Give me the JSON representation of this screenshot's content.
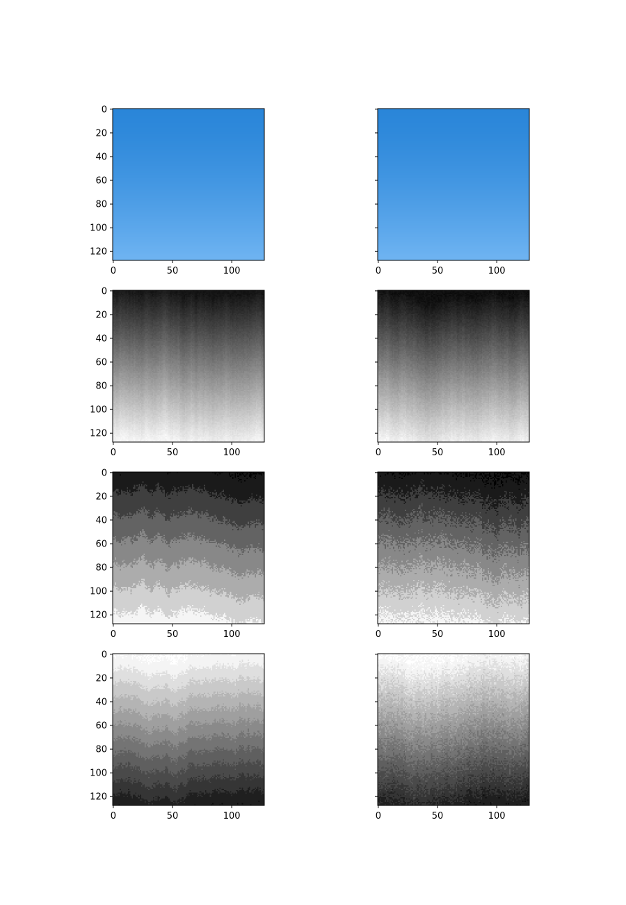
{
  "chart_data": {
    "type": "image-grid",
    "title": "",
    "rows": 4,
    "cols": 2,
    "shared_y_axis_per_row": true,
    "image_size": [
      128,
      128
    ],
    "x_ticks": [
      0,
      50,
      100
    ],
    "y_ticks": [
      0,
      20,
      40,
      60,
      80,
      100,
      120
    ],
    "x_tick_labels": [
      "0",
      "50",
      "100"
    ],
    "y_tick_labels": [
      "0",
      "20",
      "40",
      "60",
      "80",
      "100",
      "120"
    ],
    "xlim": [
      -0.5,
      127.5
    ],
    "ylim": [
      127.5,
      -0.5
    ],
    "grid": false,
    "panels": [
      {
        "row": 0,
        "col": 0,
        "kind": "rgb-gradient",
        "top_color": "#2a86d9",
        "bottom_color": "#6fb4f2",
        "noise": 0,
        "levels": 0,
        "seed": 11
      },
      {
        "row": 0,
        "col": 1,
        "kind": "rgb-gradient",
        "top_color": "#2a86d9",
        "bottom_color": "#6fb4f2",
        "noise": 0,
        "levels": 0,
        "seed": 12
      },
      {
        "row": 1,
        "col": 0,
        "kind": "gray-gradient",
        "top_gray": 20,
        "bottom_gray": 245,
        "noise": 10,
        "levels": 0,
        "seed": 21
      },
      {
        "row": 1,
        "col": 1,
        "kind": "gray-gradient",
        "top_gray": 15,
        "bottom_gray": 245,
        "noise": 12,
        "levels": 0,
        "seed": 22
      },
      {
        "row": 2,
        "col": 0,
        "kind": "quantized-gray",
        "top_gray": 20,
        "bottom_gray": 245,
        "noise": 14,
        "levels": 7,
        "seed": 31
      },
      {
        "row": 2,
        "col": 1,
        "kind": "quantized-gray",
        "top_gray": 20,
        "bottom_gray": 245,
        "noise": 28,
        "levels": 7,
        "seed": 32
      },
      {
        "row": 3,
        "col": 0,
        "kind": "quantized-gray",
        "top_gray": 245,
        "bottom_gray": 15,
        "noise": 10,
        "levels": 12,
        "seed": 41
      },
      {
        "row": 3,
        "col": 1,
        "kind": "quantized-gray",
        "top_gray": 245,
        "bottom_gray": 20,
        "noise": 24,
        "levels": 12,
        "seed": 42
      }
    ]
  }
}
